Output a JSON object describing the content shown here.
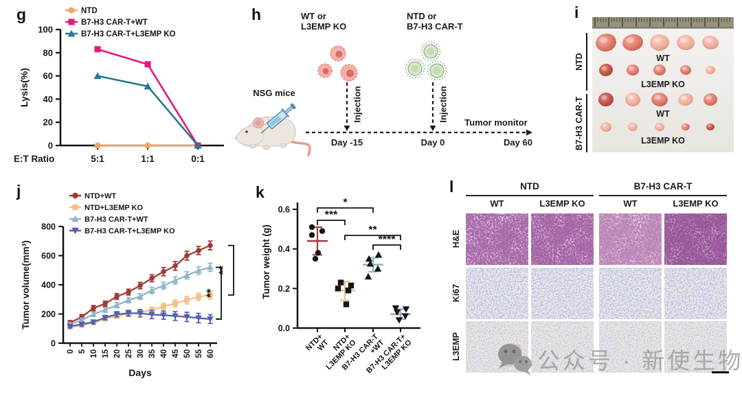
{
  "watermark": {
    "text": "公众号 · 新使生物",
    "icon": "wechat-logo"
  },
  "panels": {
    "g": {
      "letter": "g",
      "chart_data": {
        "type": "line",
        "categories": [
          "5:1",
          "1:1",
          "0:1"
        ],
        "xlabel": "E:T Ratio",
        "ylabel": "Lysis(%)",
        "ylim": [
          0,
          100
        ],
        "yticks": [
          0,
          20,
          40,
          60,
          80,
          100
        ],
        "legend_position": "top-left",
        "series": [
          {
            "name": "NTD",
            "marker": "circle",
            "color": "#F2A45F",
            "values": [
              0,
              0,
              0
            ]
          },
          {
            "name": "B7-H3 CAR-T+WT",
            "marker": "square",
            "color": "#E2197D",
            "values": [
              83,
              70,
              0
            ]
          },
          {
            "name": "B7-H3 CAR-T+L3EMP KO",
            "marker": "triangle-up",
            "color": "#27798F",
            "values": [
              60,
              51,
              0
            ]
          }
        ]
      }
    },
    "h": {
      "letter": "h",
      "cells_label_1": "WT or\nL3EMP KO",
      "cells_label_2": "NTD or\nB7-H3 CAR-T",
      "mice_label": "NSG mice",
      "injection_label_1": "Injection",
      "injection_label_2": "Injection",
      "monitor_label": "Tumor monitor",
      "timeline": [
        "Day -15",
        "Day 0",
        "Day 60"
      ]
    },
    "i": {
      "letter": "i",
      "group_labels": [
        "NTD",
        "B7-H3 CAR-T"
      ],
      "tumor_row_labels": [
        "WT",
        "L3EMP KO",
        "WT",
        "L3EMP KO"
      ],
      "tumors_per_row": 5
    },
    "j": {
      "letter": "j",
      "chart_data": {
        "type": "line",
        "x": [
          0,
          5,
          10,
          15,
          20,
          25,
          30,
          35,
          40,
          45,
          50,
          55,
          60
        ],
        "xlabel": "Days",
        "ylabel": "Tumor volume(mm³)",
        "ylim": [
          0,
          800
        ],
        "yticks": [
          0,
          200,
          400,
          600,
          800
        ],
        "series": [
          {
            "name": "NTD+WT",
            "marker": "circle",
            "color": "#A03B38",
            "values": [
              140,
              180,
              240,
              270,
              320,
              350,
              395,
              445,
              490,
              530,
              600,
              635,
              670
            ],
            "errors": [
              15,
              16,
              18,
              18,
              20,
              20,
              22,
              24,
              28,
              30,
              30,
              28,
              30
            ]
          },
          {
            "name": "NTD+L3EMP KO",
            "marker": "square",
            "color": "#F3C189",
            "values": [
              110,
              122,
              140,
              168,
              185,
              200,
              210,
              228,
              252,
              272,
              295,
              318,
              330
            ],
            "errors": [
              12,
              12,
              14,
              15,
              15,
              16,
              16,
              18,
              20,
              24,
              26,
              26,
              28
            ]
          },
          {
            "name": "B7-H3 CAR-T+WT",
            "marker": "triangle-up",
            "color": "#8FB7C5",
            "values": [
              128,
              158,
              198,
              228,
              260,
              295,
              320,
              362,
              395,
              430,
              465,
              498,
              520
            ],
            "errors": [
              12,
              14,
              15,
              16,
              18,
              18,
              20,
              22,
              24,
              25,
              25,
              26,
              28
            ]
          },
          {
            "name": "B7-H3 CAR-T+L3EMP KO",
            "marker": "triangle-down",
            "color": "#5560AE",
            "values": [
              115,
              130,
              145,
              175,
              198,
              205,
              205,
              196,
              192,
              186,
              180,
              172,
              165
            ],
            "errors": [
              10,
              12,
              12,
              15,
              18,
              20,
              25,
              28,
              28,
              30,
              32,
              32,
              30
            ]
          }
        ],
        "significance": [
          {
            "between": [
              0,
              1
            ],
            "label": "**"
          },
          {
            "between": [
              2,
              3
            ],
            "label": "**"
          }
        ]
      }
    },
    "k": {
      "letter": "k",
      "chart_data": {
        "type": "scatter",
        "ylabel": "Tumor weight (g)",
        "ylim": [
          0,
          0.6
        ],
        "yticks": [
          0.0,
          0.2,
          0.4,
          0.6
        ],
        "groups": [
          {
            "name": "NTD+\nWT",
            "marker": "circle",
            "line_color": "#A03B38",
            "values": [
              0.51,
              0.49,
              0.47,
              0.38,
              0.35
            ],
            "mean": 0.44,
            "sd_low": 0.37,
            "sd_high": 0.51,
            "jitter": [
              -8,
              7,
              -8,
              1,
              -3
            ]
          },
          {
            "name": "NTD+\nL3EMP KO",
            "marker": "square",
            "line_color": "#F0BE8C",
            "values": [
              0.23,
              0.215,
              0.2,
              0.19,
              0.12
            ],
            "mean": 0.19,
            "sd_low": 0.14,
            "sd_high": 0.235,
            "jitter": [
              -6,
              9,
              -10,
              5,
              2
            ]
          },
          {
            "name": "B7-H3 CAR-T\n+WT",
            "marker": "triangle-up",
            "line_color": "#8FB7C5",
            "values": [
              0.37,
              0.35,
              0.325,
              0.3,
              0.26
            ],
            "mean": 0.32,
            "sd_low": 0.285,
            "sd_high": 0.355,
            "jitter": [
              8,
              -6,
              -4,
              7,
              -7
            ]
          },
          {
            "name": "B7-H3 CAR-T+\nL3EMP KO",
            "marker": "triangle-down",
            "line_color": "#93AEC4",
            "values": [
              0.1,
              0.095,
              0.08,
              0.06,
              0.04
            ],
            "mean": 0.07,
            "sd_low": 0.045,
            "sd_high": 0.095,
            "jitter": [
              -7,
              8,
              -5,
              7,
              -2
            ]
          }
        ],
        "significance": [
          {
            "between": [
              0,
              2
            ],
            "label": "*"
          },
          {
            "between": [
              0,
              1
            ],
            "label": "***"
          },
          {
            "between": [
              1,
              3
            ],
            "label": "**"
          },
          {
            "between": [
              2,
              3
            ],
            "label": "****"
          }
        ]
      }
    },
    "l": {
      "letter": "l",
      "group_headers": [
        "NTD",
        "B7-H3 CAR-T"
      ],
      "column_headers": [
        "WT",
        "L3EMP KO",
        "WT",
        "L3EMP KO"
      ],
      "row_labels": [
        "H&E",
        "Ki67",
        "L3EMP"
      ]
    }
  }
}
